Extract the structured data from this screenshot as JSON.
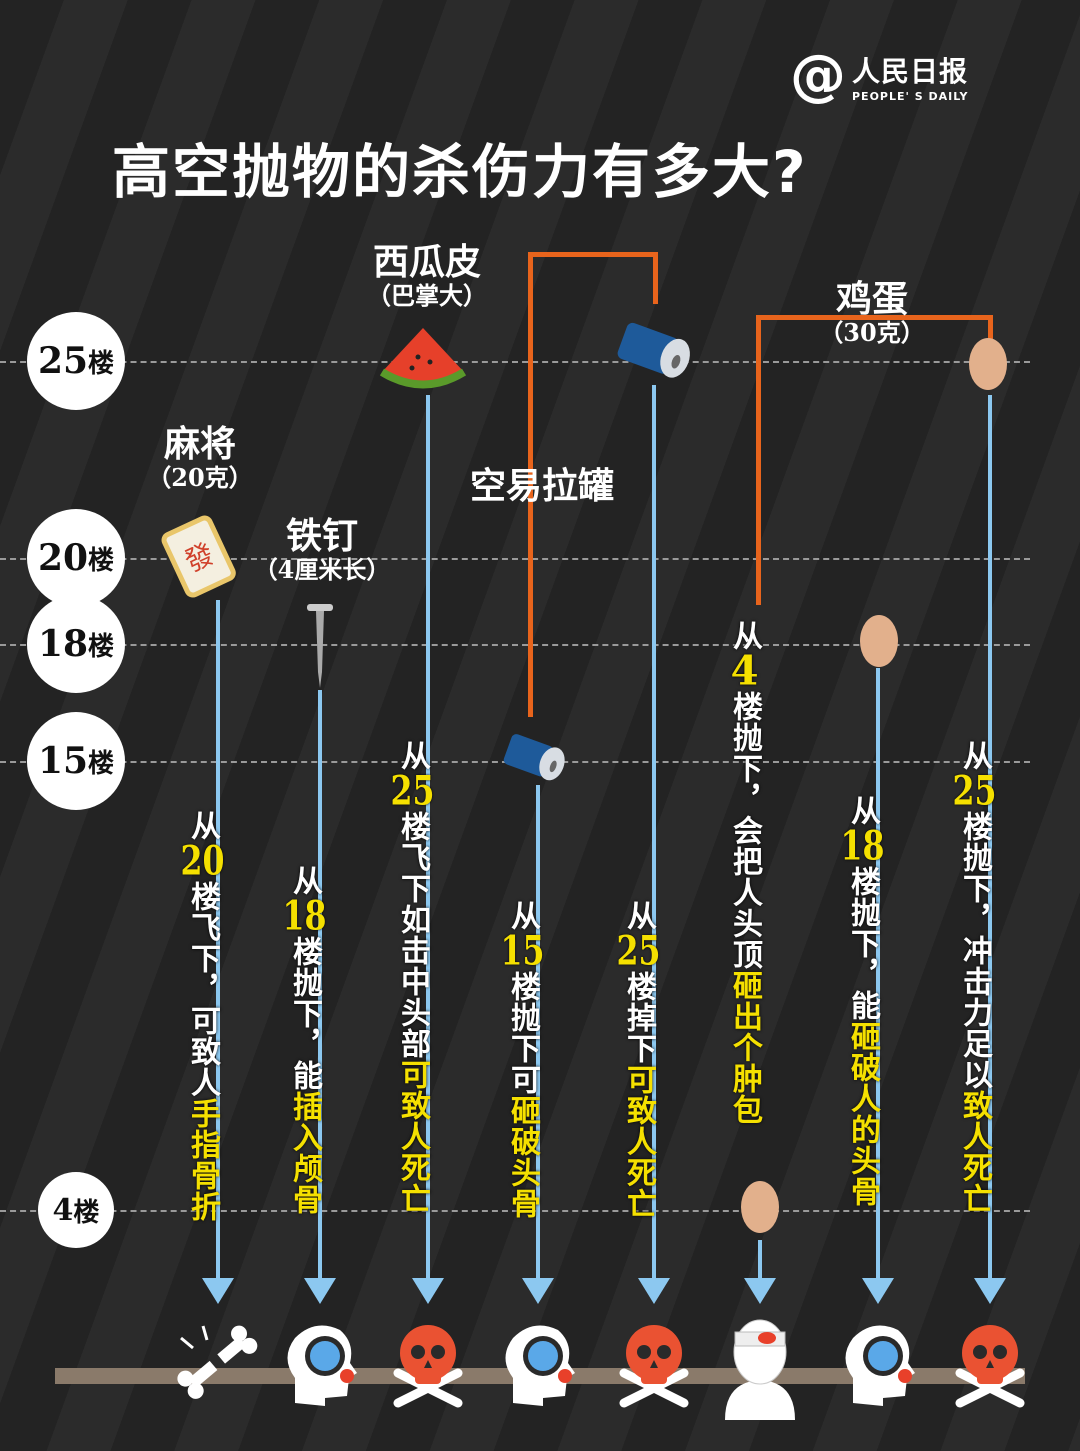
{
  "title": "高空抛物的杀伤力有多大?",
  "logo": {
    "symbol": "@",
    "cn": "人民日报",
    "en": "PEOPLE' S DAILY"
  },
  "floors": [
    {
      "num": "25",
      "unit": "楼"
    },
    {
      "num": "20",
      "unit": "楼"
    },
    {
      "num": "18",
      "unit": "楼"
    },
    {
      "num": "15",
      "unit": "楼"
    },
    {
      "num": "4",
      "unit": "楼"
    }
  ],
  "objects": [
    {
      "name": "麻将",
      "note": "（20克）"
    },
    {
      "name": "铁钉",
      "note": "（4厘米长）"
    },
    {
      "name": "西瓜皮",
      "note": "（巴掌大）"
    },
    {
      "name": "空易拉罐",
      "note": ""
    },
    {
      "name": "鸡蛋",
      "note": "（30克）"
    }
  ],
  "columns": [
    {
      "pre": "从",
      "num": "20",
      "mid": "楼飞下，可致人",
      "hl": "手指骨折",
      "result_icon": "broken-bone-icon"
    },
    {
      "pre": "从",
      "num": "18",
      "mid": "楼抛下，能",
      "hl": "插入颅骨",
      "result_icon": "head-injury-icon"
    },
    {
      "pre": "从",
      "num": "25",
      "mid": "楼飞下如击中头部",
      "hl": "可致人死亡",
      "result_icon": "skull-icon"
    },
    {
      "pre": "从",
      "num": "15",
      "mid": "楼抛下可",
      "hl": "砸破头骨",
      "result_icon": "head-injury-icon"
    },
    {
      "pre": "从",
      "num": "25",
      "mid": "楼掉下",
      "hl": "可致人死亡",
      "result_icon": "skull-icon"
    },
    {
      "pre": "从",
      "num": "4",
      "mid": "楼抛下，会把人头顶",
      "hl": "砸出个肿包",
      "result_icon": "bandaged-head-icon"
    },
    {
      "pre": "从",
      "num": "18",
      "mid": "楼抛下，能",
      "hl": "砸破人的头骨",
      "result_icon": "head-injury-icon"
    },
    {
      "pre": "从",
      "num": "25",
      "mid": "楼抛下，冲击力足以",
      "hl": "致人死亡",
      "result_icon": "skull-icon"
    }
  ],
  "colors": {
    "background": "#262626",
    "highlight": "#f5e000",
    "arrow": "#8cc8f0",
    "bracket": "#e8641c"
  }
}
